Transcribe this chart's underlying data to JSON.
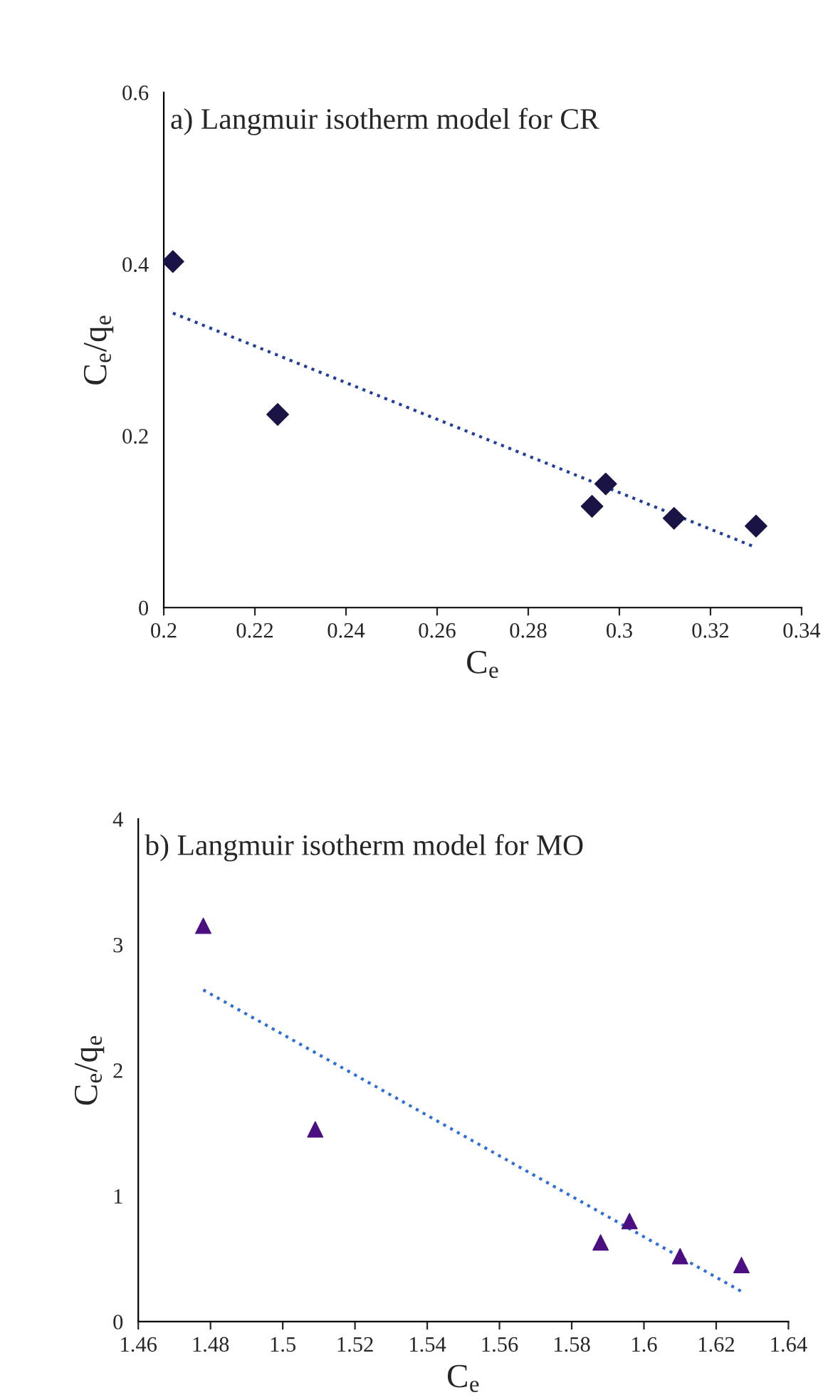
{
  "chart_data": [
    {
      "type": "scatter",
      "title": "a) Langmuir isotherm model for CR",
      "xlabel": "C$_{e}$",
      "ylabel": "C$_{e}$/q$_{e}$",
      "xlim": [
        0.2,
        0.34
      ],
      "xticks": [
        0.2,
        0.22,
        0.24,
        0.26,
        0.28,
        0.3,
        0.32,
        0.34
      ],
      "ylim": [
        0,
        0.6
      ],
      "yticks": [
        0,
        0.2,
        0.4,
        0.6
      ],
      "grid": false,
      "legend": false,
      "series": [
        {
          "color": "#1a1446",
          "marker": "diamond",
          "x": [
            0.202,
            0.225,
            0.294,
            0.297,
            0.312,
            0.33
          ],
          "values": [
            0.403,
            0.225,
            0.118,
            0.144,
            0.104,
            0.095
          ]
        },
        {
          "type": "line",
          "color": "#1f3f99",
          "line_style": "dotted",
          "marker": "none",
          "x": [
            0.202,
            0.33
          ],
          "values": [
            0.343,
            0.07
          ]
        }
      ]
    },
    {
      "type": "scatter",
      "title": "b) Langmuir isotherm model for MO",
      "xlabel": "C$_{e}$",
      "ylabel": "C$_{e}$/q$_{e}$",
      "xlim": [
        1.46,
        1.64
      ],
      "xticks": [
        1.46,
        1.48,
        1.5,
        1.52,
        1.54,
        1.56,
        1.58,
        1.6,
        1.62,
        1.64
      ],
      "ylim": [
        0,
        4
      ],
      "yticks": [
        0,
        1,
        2,
        3,
        4
      ],
      "grid": false,
      "legend": false,
      "series": [
        {
          "color": "#4b0f82",
          "marker": "triangle",
          "x": [
            1.478,
            1.509,
            1.588,
            1.596,
            1.61,
            1.627
          ],
          "values": [
            3.15,
            1.53,
            0.63,
            0.8,
            0.52,
            0.45
          ]
        },
        {
          "type": "line",
          "color": "#2d6fd6",
          "line_style": "dotted",
          "marker": "none",
          "x": [
            1.478,
            1.627
          ],
          "values": [
            2.64,
            0.24
          ]
        }
      ]
    }
  ]
}
